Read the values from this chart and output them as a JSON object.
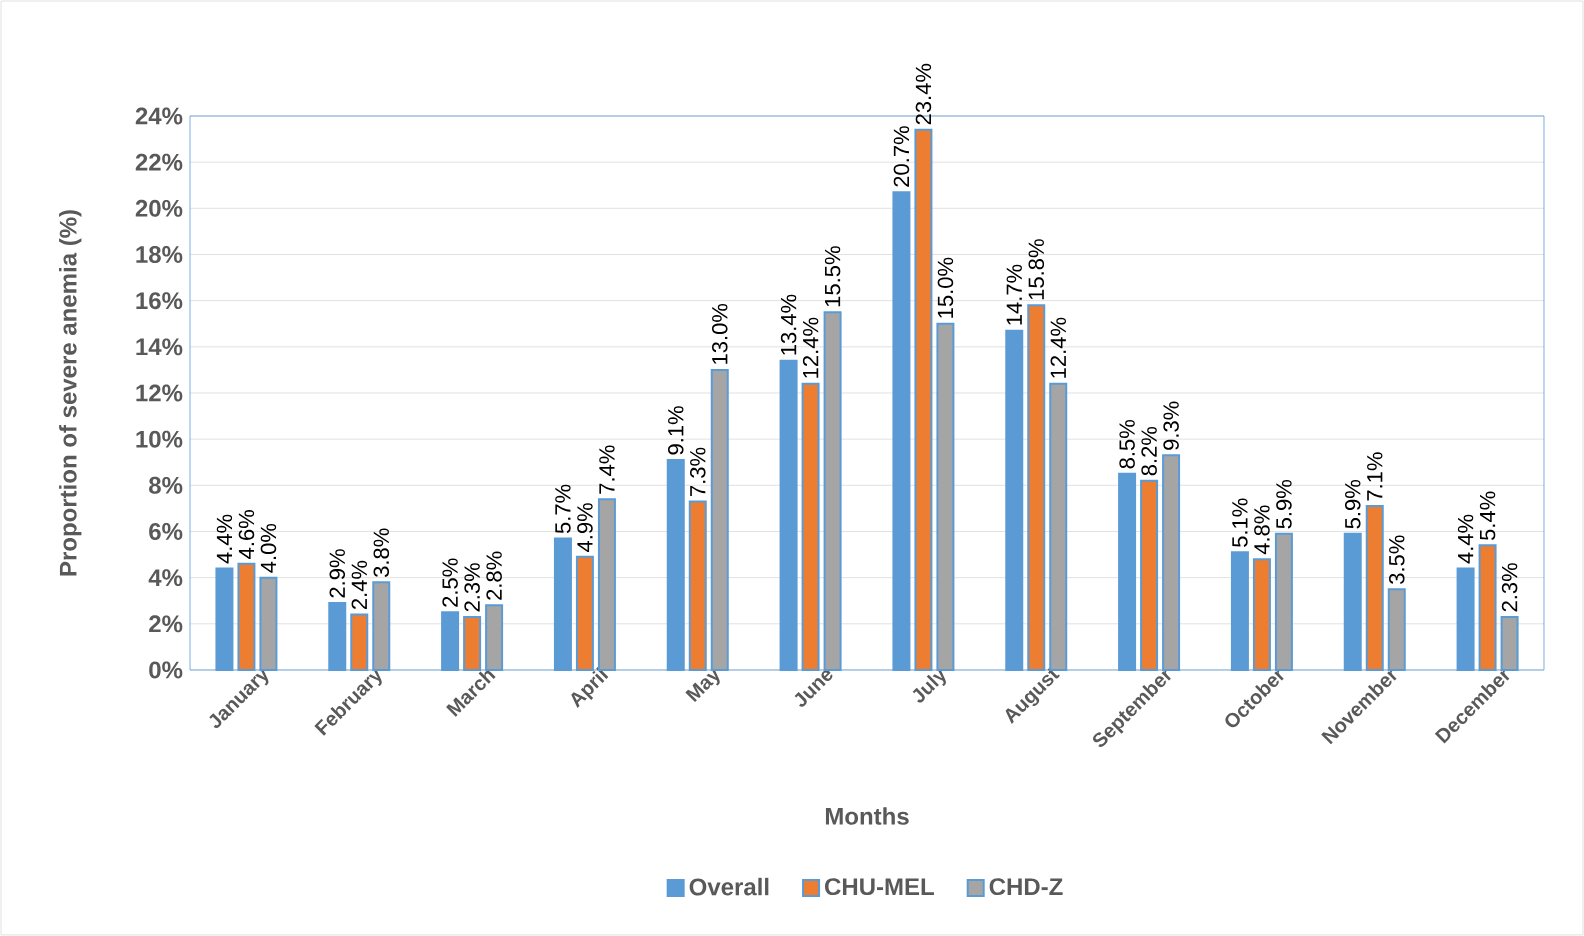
{
  "chart_data": {
    "type": "bar",
    "xlabel": "Months",
    "ylabel": "Proportion of severe anemia (%)",
    "categories": [
      "January",
      "February",
      "March",
      "April",
      "May",
      "June",
      "July",
      "August",
      "September",
      "October",
      "November",
      "December"
    ],
    "series": [
      {
        "name": "Overall",
        "color": "#5b9bd5",
        "values": [
          4.4,
          2.9,
          2.5,
          5.7,
          9.1,
          13.4,
          20.7,
          14.7,
          8.5,
          5.1,
          5.9,
          4.4
        ],
        "value_labels": [
          "4.4%",
          "2.9%",
          "2.5%",
          "5.7%",
          "9.1%",
          "13.4%",
          "20.7%",
          "14.7%",
          "8.5%",
          "5.1%",
          "5.9%",
          "4.4%"
        ]
      },
      {
        "name": "CHU-MEL",
        "color": "#ed7d31",
        "values": [
          4.6,
          2.4,
          2.3,
          4.9,
          7.3,
          12.4,
          23.4,
          15.8,
          8.2,
          4.8,
          7.1,
          5.4
        ],
        "value_labels": [
          "4.6%",
          "2.4%",
          "2.3%",
          "4.9%",
          "7.3%",
          "12.4%",
          "23.4%",
          "15.8%",
          "8.2%",
          "4.8%",
          "7.1%",
          "5.4%"
        ]
      },
      {
        "name": "CHD-Z",
        "color": "#a5a5a5",
        "values": [
          4.0,
          3.8,
          2.8,
          7.4,
          13.0,
          15.5,
          15.0,
          12.4,
          9.3,
          5.9,
          3.5,
          2.3
        ],
        "value_labels": [
          "4.0%",
          "3.8%",
          "2.8%",
          "7.4%",
          "13.0%",
          "15.5%",
          "15.0%",
          "12.4%",
          "9.3%",
          "5.9%",
          "3.5%",
          "2.3%"
        ]
      }
    ],
    "ylim": [
      0,
      24
    ],
    "yticks": [
      {
        "value": 0,
        "label": "0%"
      },
      {
        "value": 2,
        "label": "2%"
      },
      {
        "value": 4,
        "label": "4%"
      },
      {
        "value": 6,
        "label": "6%"
      },
      {
        "value": 8,
        "label": "8%"
      },
      {
        "value": 10,
        "label": "10%"
      },
      {
        "value": 12,
        "label": "12%"
      },
      {
        "value": 14,
        "label": "14%"
      },
      {
        "value": 16,
        "label": "16%"
      },
      {
        "value": 18,
        "label": "18%"
      },
      {
        "value": 20,
        "label": "20%"
      },
      {
        "value": 22,
        "label": "22%"
      },
      {
        "value": 24,
        "label": "24%"
      }
    ],
    "grid": "y",
    "legend": "bottom"
  }
}
